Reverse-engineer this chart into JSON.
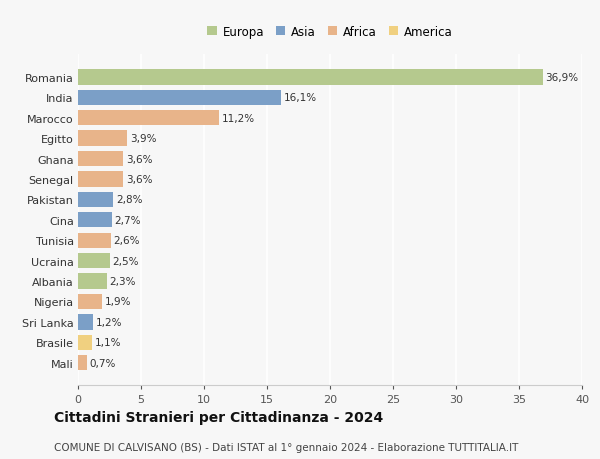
{
  "countries": [
    "Romania",
    "India",
    "Marocco",
    "Egitto",
    "Ghana",
    "Senegal",
    "Pakistan",
    "Cina",
    "Tunisia",
    "Ucraina",
    "Albania",
    "Nigeria",
    "Sri Lanka",
    "Brasile",
    "Mali"
  ],
  "values": [
    36.9,
    16.1,
    11.2,
    3.9,
    3.6,
    3.6,
    2.8,
    2.7,
    2.6,
    2.5,
    2.3,
    1.9,
    1.2,
    1.1,
    0.7
  ],
  "labels": [
    "36,9%",
    "16,1%",
    "11,2%",
    "3,9%",
    "3,6%",
    "3,6%",
    "2,8%",
    "2,7%",
    "2,6%",
    "2,5%",
    "2,3%",
    "1,9%",
    "1,2%",
    "1,1%",
    "0,7%"
  ],
  "continents": [
    "Europa",
    "Asia",
    "Africa",
    "Africa",
    "Africa",
    "Africa",
    "Asia",
    "Asia",
    "Africa",
    "Europa",
    "Europa",
    "Africa",
    "Asia",
    "America",
    "Africa"
  ],
  "continent_colors": {
    "Europa": "#b5c98e",
    "Asia": "#7b9fc7",
    "Africa": "#e8b48a",
    "America": "#f0d080"
  },
  "legend_order": [
    "Europa",
    "Asia",
    "Africa",
    "America"
  ],
  "title": "Cittadini Stranieri per Cittadinanza - 2024",
  "subtitle": "COMUNE DI CALVISANO (BS) - Dati ISTAT al 1° gennaio 2024 - Elaborazione TUTTITALIA.IT",
  "xlim": [
    0,
    40
  ],
  "xticks": [
    0,
    5,
    10,
    15,
    20,
    25,
    30,
    35,
    40
  ],
  "background_color": "#f7f7f7",
  "grid_color": "#ffffff",
  "bar_height": 0.75,
  "label_fontsize": 7.5,
  "ytick_fontsize": 8,
  "xtick_fontsize": 8,
  "title_fontsize": 10,
  "subtitle_fontsize": 7.5
}
